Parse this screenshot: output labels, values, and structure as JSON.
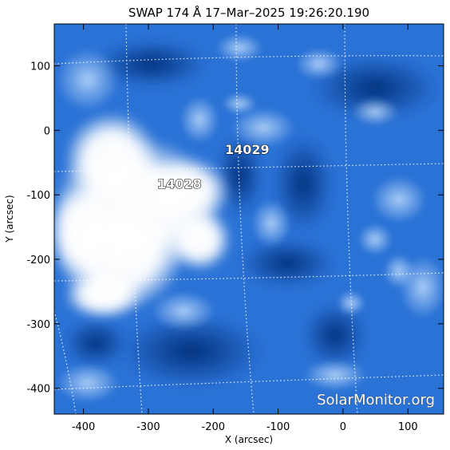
{
  "title": "SWAP 174 Å 17–Mar–2025 19:26:20.190",
  "x_axis": {
    "label": "X (arcsec)",
    "range": [
      -445,
      155
    ],
    "ticks": [
      -400,
      -300,
      -200,
      -100,
      0,
      100
    ]
  },
  "y_axis": {
    "label": "Y (arcsec)",
    "range": [
      -440,
      165
    ],
    "ticks": [
      100,
      0,
      -100,
      -200,
      -300,
      -400
    ]
  },
  "regions": [
    {
      "id": "14029",
      "x": -147,
      "y": -25
    },
    {
      "id": "14028",
      "x": -238,
      "y": -82
    }
  ],
  "watermark": "SolarMonitor.org",
  "colors": {
    "background": "#ffffff",
    "deep": "#0a3f9c",
    "mid": "#2f7fe0",
    "light": "#9fcaf5",
    "saturated": "#ffffff",
    "grid": "#ffffff"
  }
}
